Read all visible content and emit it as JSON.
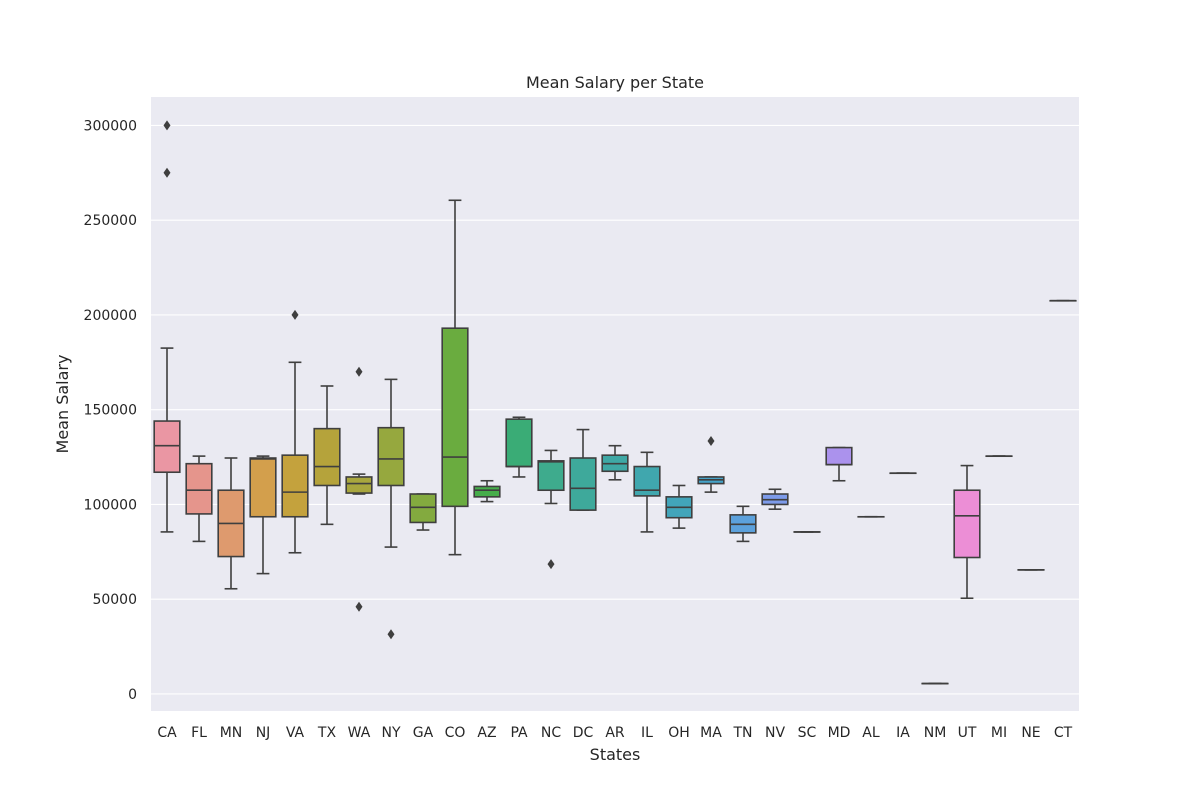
{
  "chart_data": {
    "type": "box",
    "title": "Mean Salary per State",
    "xlabel": "States",
    "ylabel": "Mean Salary",
    "ylim": [
      -9000,
      315000
    ],
    "yticks": [
      0,
      50000,
      100000,
      150000,
      200000,
      250000,
      300000
    ],
    "grid": true,
    "categories": [
      "CA",
      "FL",
      "MN",
      "NJ",
      "VA",
      "TX",
      "WA",
      "NY",
      "GA",
      "CO",
      "AZ",
      "PA",
      "NC",
      "DC",
      "AR",
      "IL",
      "OH",
      "MA",
      "TN",
      "NV",
      "SC",
      "MD",
      "AL",
      "IA",
      "NM",
      "UT",
      "MI",
      "NE",
      "CT"
    ],
    "colors": [
      "#ea96a3",
      "#e5958c",
      "#de9a6e",
      "#d39f4c",
      "#c4a23d",
      "#b5a33b",
      "#a8a63e",
      "#96a83e",
      "#83aa3f",
      "#6aac3f",
      "#46ad4b",
      "#3aac76",
      "#3eab8d",
      "#3ea99b",
      "#3fa8a5",
      "#40a7ae",
      "#42a5ba",
      "#45a3c9",
      "#5ca1dc",
      "#7d9bea",
      "#9a96f1",
      "#ab92ed",
      "#be8ef1",
      "#d18bf0",
      "#e38aea",
      "#ec8ed6",
      "#ef93c5",
      "#f097b8",
      "#f19bae"
    ],
    "boxes": [
      {
        "state": "CA",
        "whislo": 85500,
        "q1": 117000,
        "med": 131000,
        "q3": 144000,
        "whishi": 182500,
        "fliers": [
          275000,
          300000
        ]
      },
      {
        "state": "FL",
        "whislo": 80500,
        "q1": 95000,
        "med": 107500,
        "q3": 121500,
        "whishi": 125500,
        "fliers": []
      },
      {
        "state": "MN",
        "whislo": 55500,
        "q1": 72500,
        "med": 90000,
        "q3": 107500,
        "whishi": 124500,
        "fliers": []
      },
      {
        "state": "NJ",
        "whislo": 63500,
        "q1": 93500,
        "med": 124000,
        "q3": 124500,
        "whishi": 125500,
        "fliers": []
      },
      {
        "state": "VA",
        "whislo": 74500,
        "q1": 93500,
        "med": 106500,
        "q3": 126000,
        "whishi": 175000,
        "fliers": [
          200000
        ]
      },
      {
        "state": "TX",
        "whislo": 89500,
        "q1": 110000,
        "med": 120000,
        "q3": 140000,
        "whishi": 162500,
        "fliers": []
      },
      {
        "state": "WA",
        "whislo": 105500,
        "q1": 106000,
        "med": 111000,
        "q3": 114500,
        "whishi": 116000,
        "fliers": [
          170000,
          46000
        ]
      },
      {
        "state": "NY",
        "whislo": 77500,
        "q1": 110000,
        "med": 124000,
        "q3": 140500,
        "whishi": 166000,
        "fliers": [
          31500
        ]
      },
      {
        "state": "GA",
        "whislo": 86500,
        "q1": 90500,
        "med": 98500,
        "q3": 105500,
        "whishi": 105500,
        "fliers": []
      },
      {
        "state": "CO",
        "whislo": 73500,
        "q1": 99000,
        "med": 125000,
        "q3": 193000,
        "whishi": 260500,
        "fliers": []
      },
      {
        "state": "AZ",
        "whislo": 101500,
        "q1": 104000,
        "med": 107500,
        "q3": 109500,
        "whishi": 112500,
        "fliers": []
      },
      {
        "state": "PA",
        "whislo": 114500,
        "q1": 120000,
        "med": 120000,
        "q3": 145000,
        "whishi": 146000,
        "fliers": []
      },
      {
        "state": "NC",
        "whislo": 100500,
        "q1": 107500,
        "med": 122500,
        "q3": 123000,
        "whishi": 128500,
        "fliers": [
          68500
        ]
      },
      {
        "state": "DC",
        "whislo": 97000,
        "q1": 97000,
        "med": 108500,
        "q3": 124500,
        "whishi": 139500,
        "fliers": []
      },
      {
        "state": "AR",
        "whislo": 113000,
        "q1": 117500,
        "med": 121500,
        "q3": 126000,
        "whishi": 131000,
        "fliers": []
      },
      {
        "state": "IL",
        "whislo": 85500,
        "q1": 104500,
        "med": 107500,
        "q3": 120000,
        "whishi": 127500,
        "fliers": []
      },
      {
        "state": "OH",
        "whislo": 87500,
        "q1": 93000,
        "med": 98500,
        "q3": 104000,
        "whishi": 110000,
        "fliers": []
      },
      {
        "state": "MA",
        "whislo": 106500,
        "q1": 111000,
        "med": 113000,
        "q3": 114500,
        "whishi": 114500,
        "fliers": [
          133500
        ]
      },
      {
        "state": "TN",
        "whislo": 80500,
        "q1": 85000,
        "med": 89500,
        "q3": 94500,
        "whishi": 99000,
        "fliers": []
      },
      {
        "state": "NV",
        "whislo": 97500,
        "q1": 100000,
        "med": 102500,
        "q3": 105500,
        "whishi": 108000,
        "fliers": []
      },
      {
        "state": "SC",
        "whislo": 85500,
        "q1": 85500,
        "med": 85500,
        "q3": 85500,
        "whishi": 85500,
        "fliers": []
      },
      {
        "state": "MD",
        "whislo": 112500,
        "q1": 121000,
        "med": 121000,
        "q3": 130000,
        "whishi": 130000,
        "fliers": []
      },
      {
        "state": "AL",
        "whislo": 93500,
        "q1": 93500,
        "med": 93500,
        "q3": 93500,
        "whishi": 93500,
        "fliers": []
      },
      {
        "state": "IA",
        "whislo": 116500,
        "q1": 116500,
        "med": 116500,
        "q3": 116500,
        "whishi": 116500,
        "fliers": []
      },
      {
        "state": "NM",
        "whislo": 5500,
        "q1": 5500,
        "med": 5500,
        "q3": 5500,
        "whishi": 5500,
        "fliers": []
      },
      {
        "state": "UT",
        "whislo": 50500,
        "q1": 72000,
        "med": 94000,
        "q3": 107500,
        "whishi": 120500,
        "fliers": []
      },
      {
        "state": "MI",
        "whislo": 125500,
        "q1": 125500,
        "med": 125500,
        "q3": 125500,
        "whishi": 125500,
        "fliers": []
      },
      {
        "state": "NE",
        "whislo": 65500,
        "q1": 65500,
        "med": 65500,
        "q3": 65500,
        "whishi": 65500,
        "fliers": []
      },
      {
        "state": "CT",
        "whislo": 207500,
        "q1": 207500,
        "med": 207500,
        "q3": 207500,
        "whishi": 207500,
        "fliers": []
      }
    ]
  }
}
